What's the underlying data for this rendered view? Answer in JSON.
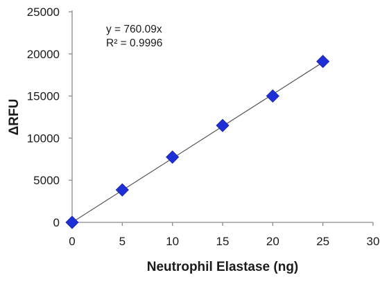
{
  "chart_data": {
    "type": "scatter",
    "title": "",
    "xlabel": "Neutrophil Elastase (ng)",
    "ylabel": "ΔRFU",
    "xlim": [
      0,
      30
    ],
    "ylim": [
      0,
      25000
    ],
    "x_ticks": [
      0,
      5,
      10,
      15,
      20,
      25,
      30
    ],
    "y_ticks": [
      0,
      5000,
      10000,
      15000,
      20000,
      25000
    ],
    "grid": false,
    "legend": "none",
    "series": [
      {
        "marker": "diamond",
        "color": "#1f2fd6",
        "points": [
          {
            "x": 0,
            "y": 0
          },
          {
            "x": 5,
            "y": 3850
          },
          {
            "x": 10,
            "y": 7750
          },
          {
            "x": 15,
            "y": 11500
          },
          {
            "x": 20,
            "y": 15000
          },
          {
            "x": 25,
            "y": 19100
          }
        ]
      }
    ],
    "trendline": {
      "slope": 760.09,
      "intercept": 0,
      "color": "#555555",
      "x_range": [
        0,
        25
      ]
    },
    "annotations": {
      "equation": "y = 760.09x",
      "r_squared": "R² = 0.9996"
    }
  }
}
